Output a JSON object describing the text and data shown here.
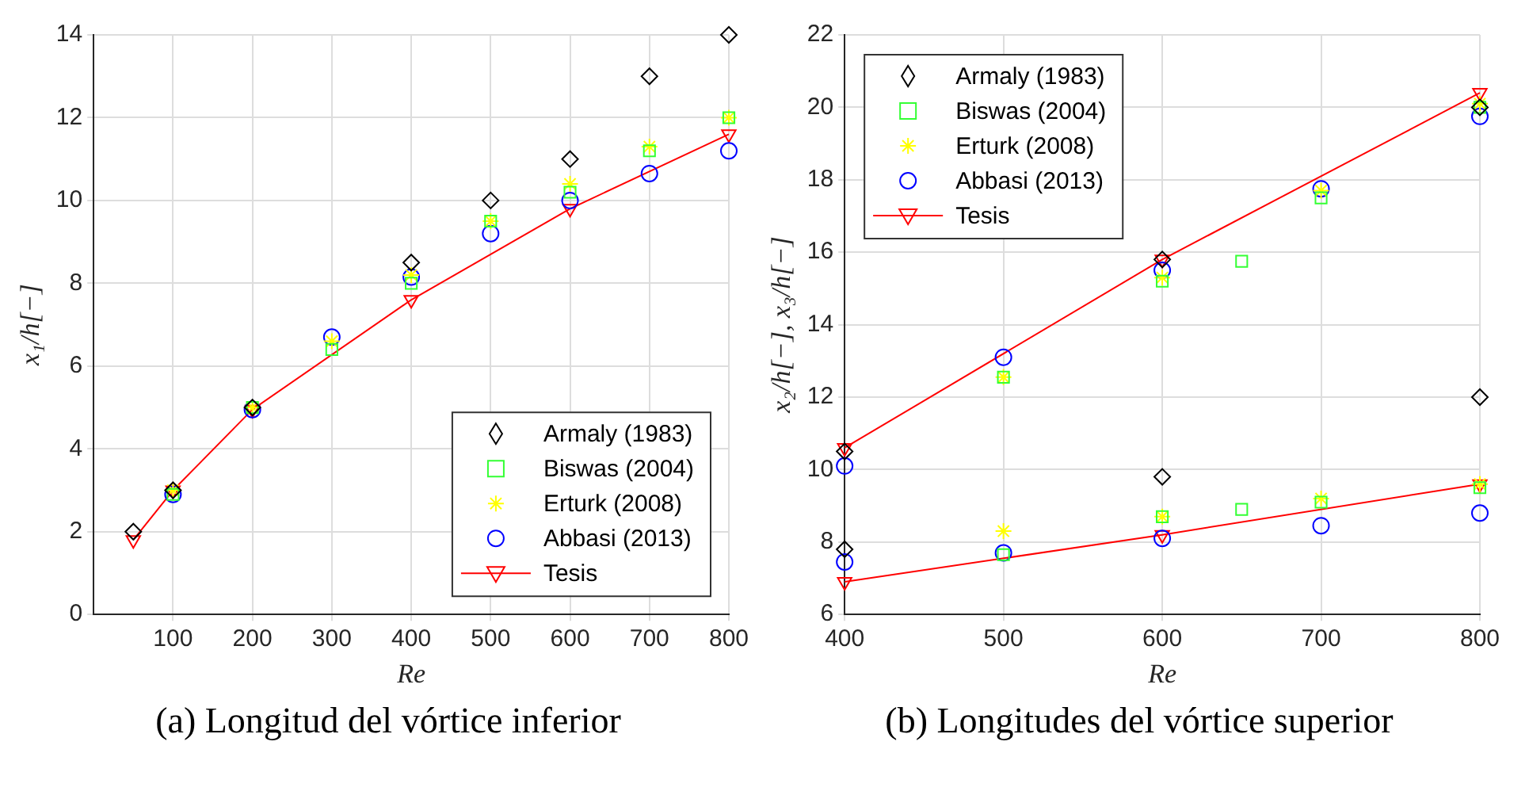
{
  "chart_data": [
    {
      "type": "scatter",
      "xlabel": "Re",
      "ylabel": "x₁/h[−]",
      "xlim": [
        0,
        800
      ],
      "xticks": [
        100,
        200,
        300,
        400,
        500,
        600,
        700,
        800
      ],
      "ylim": [
        0,
        14
      ],
      "yticks": [
        0,
        2,
        4,
        6,
        8,
        10,
        12,
        14
      ],
      "grid": true,
      "legend": "bottom right",
      "annotations": [
        "(a) Longitud del vórtice inferior"
      ],
      "series": [
        {
          "name": "Armaly (1983)",
          "color": "#000000",
          "marker": "diamond",
          "x": [
            50,
            100,
            200,
            400,
            500,
            600,
            700,
            800
          ],
          "values": [
            2,
            3,
            5,
            8.5,
            10,
            11,
            13,
            14
          ]
        },
        {
          "name": "Biswas (2004)",
          "color": "#33ff33",
          "marker": "square",
          "x": [
            100,
            200,
            300,
            400,
            500,
            600,
            700,
            800
          ],
          "values": [
            2.9,
            5,
            6.4,
            8,
            9.5,
            10.2,
            11.2,
            12
          ]
        },
        {
          "name": "Erturk (2008)",
          "color": "#ffff00",
          "marker": "cross",
          "x": [
            100,
            200,
            300,
            400,
            500,
            600,
            700,
            800
          ],
          "values": [
            3,
            5,
            6.6,
            8.2,
            9.5,
            10.4,
            11.3,
            12
          ]
        },
        {
          "name": "Abbasi (2013)",
          "color": "#0000ff",
          "marker": "circle",
          "x": [
            100,
            200,
            300,
            400,
            500,
            600,
            700,
            800
          ],
          "values": [
            2.9,
            4.95,
            6.7,
            8.15,
            9.2,
            10,
            10.65,
            11.2
          ]
        },
        {
          "name": "Tesis",
          "type": "line",
          "color": "#ff0000",
          "marker": "triangle",
          "line_style": "solid",
          "x": [
            50,
            100,
            200,
            400,
            600,
            800
          ],
          "values": [
            1.8,
            3,
            4.95,
            7.6,
            9.8,
            11.6
          ]
        }
      ]
    },
    {
      "type": "scatter",
      "xlabel": "Re",
      "ylabel": "x₂/h[−], x₃/h[−]",
      "xlim": [
        400,
        800
      ],
      "xticks": [
        400,
        500,
        600,
        700,
        800
      ],
      "ylim": [
        6,
        22
      ],
      "yticks": [
        6,
        8,
        10,
        12,
        14,
        16,
        18,
        20,
        22
      ],
      "grid": true,
      "legend": "top left",
      "annotations": [
        "(b) Longitudes del vórtice superior"
      ],
      "series": [
        {
          "name": "Armaly (1983)",
          "color": "#000000",
          "marker": "diamond",
          "x": [
            400,
            400,
            600,
            600,
            800,
            800
          ],
          "values": [
            10.5,
            7.8,
            15.8,
            9.8,
            20,
            12
          ]
        },
        {
          "name": "Biswas (2004)",
          "color": "#33ff33",
          "marker": "square",
          "x": [
            500,
            500,
            600,
            600,
            650,
            650,
            700,
            700,
            800,
            800
          ],
          "values": [
            12.55,
            7.65,
            15.2,
            8.7,
            15.75,
            8.9,
            17.5,
            9.1,
            20,
            9.5
          ]
        },
        {
          "name": "Erturk (2008)",
          "color": "#ffff00",
          "marker": "cross",
          "x": [
            500,
            500,
            600,
            600,
            700,
            700,
            800,
            800
          ],
          "values": [
            12.55,
            8.3,
            15.3,
            8.7,
            17.7,
            9.2,
            20.1,
            9.6
          ]
        },
        {
          "name": "Abbasi (2013)",
          "color": "#0000ff",
          "marker": "circle",
          "x": [
            400,
            400,
            500,
            500,
            600,
            600,
            700,
            700,
            800,
            800
          ],
          "values": [
            10.1,
            7.45,
            13.1,
            7.7,
            15.5,
            8.1,
            17.75,
            8.45,
            19.75,
            8.8
          ]
        },
        {
          "name": "Tesis",
          "type": "line",
          "color": "#ff0000",
          "marker": "triangle",
          "line_style": "solid",
          "x": [
            400,
            600,
            800
          ],
          "values": [
            10.6,
            15.8,
            20.4
          ]
        },
        {
          "type": "line",
          "color": "#ff0000",
          "marker": "triangle",
          "line_style": "solid",
          "x": [
            400,
            600,
            800
          ],
          "values": [
            6.9,
            8.2,
            9.6
          ]
        }
      ]
    }
  ]
}
